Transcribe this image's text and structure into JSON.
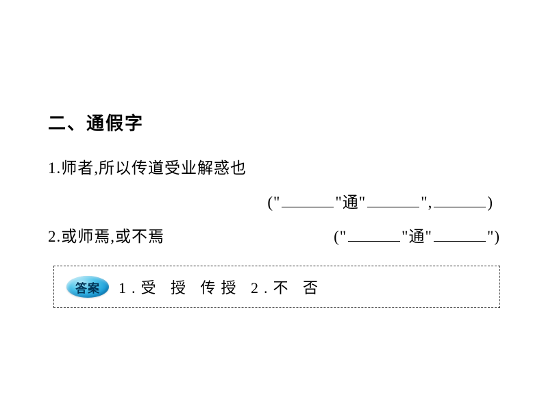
{
  "heading": "二、通假字",
  "questions": {
    "q1": {
      "number": "1.",
      "text": "师者,所以传道受业解惑也",
      "fillPrefix": "(\"",
      "fillMid1": "\"通\"",
      "fillMid2": "\",",
      "fillSuffix": ")"
    },
    "q2": {
      "number": "2.",
      "text": "或师焉,或不焉",
      "fillPrefix": "(\"",
      "fillMid": "\"通\"",
      "fillSuffix": "\")"
    }
  },
  "answer": {
    "badge": "答案",
    "text": "1.受  授  传授  2.不  否"
  },
  "styling": {
    "background_color": "#ffffff",
    "text_color": "#000000",
    "heading_fontsize": 26,
    "body_fontsize": 23,
    "answer_fontsize": 22,
    "blank_width": 76,
    "badge_gradient_start": "#b0e8f8",
    "badge_gradient_mid": "#4ec4ea",
    "badge_gradient_end": "#0d7db8",
    "badge_text_color": "#003355",
    "dashed_border_color": "#333333"
  }
}
